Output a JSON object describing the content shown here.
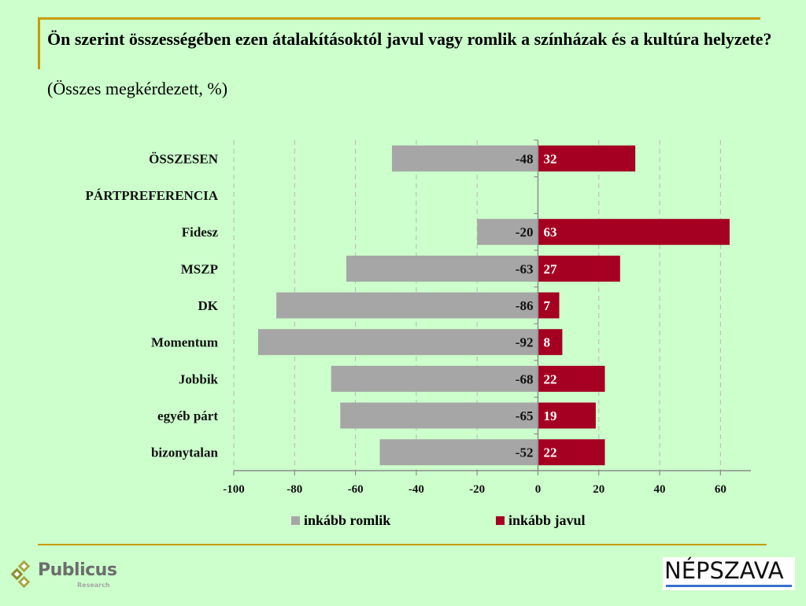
{
  "header": {
    "title": "Ön szerint összességében ezen átalakításoktól javul vagy romlik a színházak és a kultúra helyzete?",
    "subtitle": "(Összes megkérdezett, %)"
  },
  "colors": {
    "background": "#ccffcc",
    "accent_line": "#c89b00",
    "romlik": "#a6a6a6",
    "javul": "#a50021"
  },
  "chart_data": {
    "type": "bar",
    "orientation": "horizontal",
    "stacked": "diverging",
    "categories": [
      "ÖSSZESEN",
      "PÁRTPREFERENCIA",
      "Fidesz",
      "MSZP",
      "DK",
      "Momentum",
      "Jobbik",
      "egyéb párt",
      "bizonytalan"
    ],
    "series": [
      {
        "name": "inkább romlik",
        "color": "#a6a6a6",
        "values": [
          -48,
          null,
          -20,
          -63,
          -86,
          -92,
          -68,
          -65,
          -52
        ]
      },
      {
        "name": "inkább javul",
        "color": "#a50021",
        "values": [
          32,
          null,
          63,
          27,
          7,
          8,
          22,
          19,
          22
        ]
      }
    ],
    "xlim": [
      -100,
      70
    ],
    "xticks": [
      -100,
      -80,
      -60,
      -40,
      -20,
      0,
      20,
      40,
      60
    ],
    "xtick_labels": [
      "-100",
      "-80",
      "-60",
      "-40",
      "-20",
      "0",
      "20",
      "40",
      "60"
    ],
    "grid": "vertical dashed",
    "legend": "bottom"
  },
  "logos": {
    "publicus": {
      "name": "Publicus",
      "sub": "Research"
    },
    "nepszava": {
      "name": "NÉPSZAVA"
    }
  }
}
